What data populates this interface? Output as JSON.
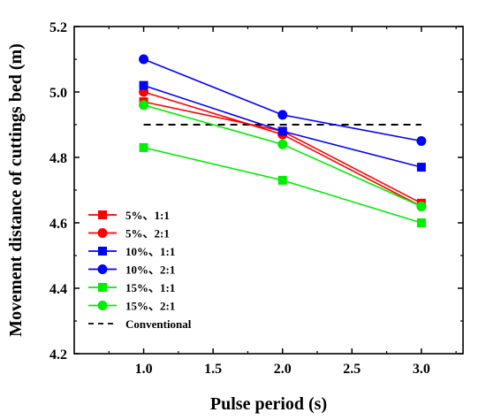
{
  "chart_data": {
    "type": "line",
    "xlabel": "Pulse period (s)",
    "ylabel": "Movement distance of cuttings bed (m)",
    "xlim": [
      0.5,
      3.3
    ],
    "ylim": [
      4.2,
      5.2
    ],
    "xticks": [
      1.0,
      1.5,
      2.0,
      2.5,
      3.0
    ],
    "yticks": [
      4.2,
      4.4,
      4.6,
      4.8,
      5.0,
      5.2
    ],
    "xtick_labels": [
      "1.0",
      "1.5",
      "2.0",
      "2.5",
      "3.0"
    ],
    "ytick_labels": [
      "4.2",
      "4.4",
      "4.6",
      "4.8",
      "5.0",
      "5.2"
    ],
    "x": [
      1.0,
      2.0,
      3.0
    ],
    "legend_position": "lower-left",
    "series": [
      {
        "name": "5%、1:1",
        "color": "#ff0000",
        "marker": "square",
        "values": [
          4.97,
          4.88,
          4.66
        ]
      },
      {
        "name": "5%、2:1",
        "color": "#ff0000",
        "marker": "circle",
        "values": [
          5.0,
          4.87,
          4.65
        ]
      },
      {
        "name": "10%、1:1",
        "color": "#0000ff",
        "marker": "square",
        "values": [
          5.02,
          4.88,
          4.77
        ]
      },
      {
        "name": "10%、2:1",
        "color": "#0000ff",
        "marker": "circle",
        "values": [
          5.1,
          4.93,
          4.85
        ]
      },
      {
        "name": "15%、1:1",
        "color": "#00ee00",
        "marker": "square",
        "values": [
          4.83,
          4.73,
          4.6
        ]
      },
      {
        "name": "15%、2:1",
        "color": "#00ee00",
        "marker": "circle",
        "values": [
          4.96,
          4.84,
          4.65
        ]
      }
    ],
    "reference_line": {
      "name": "Conventional",
      "value": 4.9,
      "color": "#000000",
      "style": "dashed"
    }
  }
}
